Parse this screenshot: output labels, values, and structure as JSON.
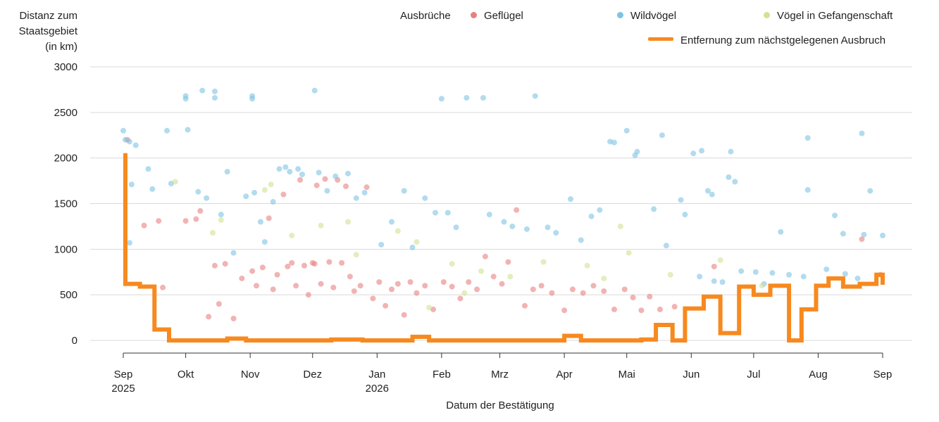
{
  "chart_data": {
    "type": "scatter",
    "ylabel_lines": [
      "Distanz zum",
      "Staatsgebiet",
      "(in km)"
    ],
    "xlabel": "Datum der Bestätigung",
    "ylim": [
      0,
      3000
    ],
    "yticks": [
      0,
      500,
      1000,
      1500,
      2000,
      2500,
      3000
    ],
    "xlim": [
      "2025-09-01",
      "2026-09-01"
    ],
    "xticks": [
      {
        "date": "2025-09-01",
        "label": "Sep",
        "sub": "2025"
      },
      {
        "date": "2025-10-01",
        "label": "Okt",
        "sub": ""
      },
      {
        "date": "2025-11-01",
        "label": "Nov",
        "sub": ""
      },
      {
        "date": "2025-12-01",
        "label": "Dez",
        "sub": ""
      },
      {
        "date": "2026-01-01",
        "label": "Jan",
        "sub": "2026"
      },
      {
        "date": "2026-02-01",
        "label": "Feb",
        "sub": ""
      },
      {
        "date": "2026-03-01",
        "label": "Mrz",
        "sub": ""
      },
      {
        "date": "2026-04-01",
        "label": "Apr",
        "sub": ""
      },
      {
        "date": "2026-05-01",
        "label": "Mai",
        "sub": ""
      },
      {
        "date": "2026-06-01",
        "label": "Jun",
        "sub": ""
      },
      {
        "date": "2026-07-01",
        "label": "Jul",
        "sub": ""
      },
      {
        "date": "2026-08-01",
        "label": "Aug",
        "sub": ""
      },
      {
        "date": "2026-09-01",
        "label": "Sep",
        "sub": ""
      }
    ],
    "grid": true,
    "legend": {
      "position": "top-right",
      "title": "Ausbrüche",
      "items": [
        "Geflügel",
        "Wildvögel",
        "Vögel in Gefangenschaft"
      ],
      "line_label": "Entfernung zum nächstgelegenen Ausbruch"
    },
    "series": [
      {
        "name": "Geflügel",
        "color": "#e88080",
        "points": [
          [
            "2025-09-03",
            2200
          ],
          [
            "2025-09-11",
            1260
          ],
          [
            "2025-09-18",
            1310
          ],
          [
            "2025-09-20",
            580
          ],
          [
            "2025-10-01",
            1310
          ],
          [
            "2025-10-06",
            1330
          ],
          [
            "2025-10-08",
            1420
          ],
          [
            "2025-10-12",
            260
          ],
          [
            "2025-10-15",
            820
          ],
          [
            "2025-10-17",
            400
          ],
          [
            "2025-10-20",
            840
          ],
          [
            "2025-10-24",
            240
          ],
          [
            "2025-10-28",
            680
          ],
          [
            "2025-11-02",
            760
          ],
          [
            "2025-11-04",
            600
          ],
          [
            "2025-11-07",
            800
          ],
          [
            "2025-11-10",
            1340
          ],
          [
            "2025-11-12",
            560
          ],
          [
            "2025-11-14",
            720
          ],
          [
            "2025-11-17",
            1600
          ],
          [
            "2025-11-19",
            810
          ],
          [
            "2025-11-21",
            850
          ],
          [
            "2025-11-23",
            600
          ],
          [
            "2025-11-25",
            1760
          ],
          [
            "2025-11-27",
            820
          ],
          [
            "2025-11-29",
            500
          ],
          [
            "2025-12-01",
            850
          ],
          [
            "2025-12-02",
            840
          ],
          [
            "2025-12-03",
            1700
          ],
          [
            "2025-12-05",
            620
          ],
          [
            "2025-12-07",
            1770
          ],
          [
            "2025-12-09",
            860
          ],
          [
            "2025-12-11",
            580
          ],
          [
            "2025-12-13",
            1760
          ],
          [
            "2025-12-15",
            850
          ],
          [
            "2025-12-17",
            1690
          ],
          [
            "2025-12-19",
            700
          ],
          [
            "2025-12-21",
            540
          ],
          [
            "2025-12-24",
            600
          ],
          [
            "2025-12-27",
            1680
          ],
          [
            "2025-12-30",
            460
          ],
          [
            "2026-01-02",
            640
          ],
          [
            "2026-01-05",
            380
          ],
          [
            "2026-01-08",
            560
          ],
          [
            "2026-01-11",
            620
          ],
          [
            "2026-01-14",
            280
          ],
          [
            "2026-01-17",
            640
          ],
          [
            "2026-01-20",
            520
          ],
          [
            "2026-01-24",
            600
          ],
          [
            "2026-01-28",
            340
          ],
          [
            "2026-02-02",
            640
          ],
          [
            "2026-02-06",
            590
          ],
          [
            "2026-02-10",
            460
          ],
          [
            "2026-02-14",
            640
          ],
          [
            "2026-02-18",
            560
          ],
          [
            "2026-02-22",
            920
          ],
          [
            "2026-02-26",
            700
          ],
          [
            "2026-03-02",
            620
          ],
          [
            "2026-03-05",
            860
          ],
          [
            "2026-03-09",
            1430
          ],
          [
            "2026-03-13",
            380
          ],
          [
            "2026-03-17",
            560
          ],
          [
            "2026-03-21",
            600
          ],
          [
            "2026-03-26",
            520
          ],
          [
            "2026-04-01",
            330
          ],
          [
            "2026-04-05",
            560
          ],
          [
            "2026-04-10",
            520
          ],
          [
            "2026-04-15",
            600
          ],
          [
            "2026-04-20",
            540
          ],
          [
            "2026-04-25",
            340
          ],
          [
            "2026-04-30",
            560
          ],
          [
            "2026-05-04",
            470
          ],
          [
            "2026-05-08",
            330
          ],
          [
            "2026-05-12",
            480
          ],
          [
            "2026-05-17",
            340
          ],
          [
            "2026-05-24",
            370
          ],
          [
            "2026-06-12",
            810
          ],
          [
            "2026-08-22",
            1110
          ],
          [
            "2026-08-31",
            720
          ]
        ]
      },
      {
        "name": "Wildvögel",
        "color": "#7ec3e3",
        "points": [
          [
            "2025-09-01",
            2300
          ],
          [
            "2025-09-02",
            2200
          ],
          [
            "2025-09-04",
            2180
          ],
          [
            "2025-09-07",
            2140
          ],
          [
            "2025-09-04",
            1070
          ],
          [
            "2025-09-05",
            1710
          ],
          [
            "2025-09-13",
            1880
          ],
          [
            "2025-09-15",
            1660
          ],
          [
            "2025-09-22",
            2300
          ],
          [
            "2025-09-24",
            1720
          ],
          [
            "2025-10-01",
            2680
          ],
          [
            "2025-10-01",
            2650
          ],
          [
            "2025-10-02",
            2310
          ],
          [
            "2025-10-09",
            2740
          ],
          [
            "2025-10-15",
            2730
          ],
          [
            "2025-10-15",
            2660
          ],
          [
            "2025-10-07",
            1630
          ],
          [
            "2025-10-11",
            1560
          ],
          [
            "2025-10-18",
            1380
          ],
          [
            "2025-10-21",
            1850
          ],
          [
            "2025-10-24",
            960
          ],
          [
            "2025-10-30",
            1580
          ],
          [
            "2025-11-02",
            2680
          ],
          [
            "2025-11-02",
            2650
          ],
          [
            "2025-11-03",
            1620
          ],
          [
            "2025-11-06",
            1300
          ],
          [
            "2025-11-08",
            1080
          ],
          [
            "2025-11-12",
            1520
          ],
          [
            "2025-11-15",
            1880
          ],
          [
            "2025-11-18",
            1900
          ],
          [
            "2025-11-20",
            1850
          ],
          [
            "2025-11-24",
            1880
          ],
          [
            "2025-11-26",
            1820
          ],
          [
            "2025-12-02",
            2740
          ],
          [
            "2025-12-04",
            1840
          ],
          [
            "2025-12-08",
            1640
          ],
          [
            "2025-12-12",
            1800
          ],
          [
            "2025-12-18",
            1830
          ],
          [
            "2025-12-22",
            1560
          ],
          [
            "2025-12-26",
            1620
          ],
          [
            "2026-01-03",
            1050
          ],
          [
            "2026-01-08",
            1300
          ],
          [
            "2026-01-14",
            1640
          ],
          [
            "2026-01-18",
            1020
          ],
          [
            "2026-01-24",
            1560
          ],
          [
            "2026-01-29",
            1400
          ],
          [
            "2026-02-01",
            2650
          ],
          [
            "2026-02-04",
            1400
          ],
          [
            "2026-02-08",
            1240
          ],
          [
            "2026-02-13",
            2660
          ],
          [
            "2026-02-21",
            2660
          ],
          [
            "2026-02-24",
            1380
          ],
          [
            "2026-03-03",
            1300
          ],
          [
            "2026-03-07",
            1250
          ],
          [
            "2026-03-14",
            1220
          ],
          [
            "2026-03-18",
            2680
          ],
          [
            "2026-03-24",
            1240
          ],
          [
            "2026-03-28",
            1180
          ],
          [
            "2026-04-04",
            1550
          ],
          [
            "2026-04-09",
            1100
          ],
          [
            "2026-04-14",
            1360
          ],
          [
            "2026-04-18",
            1430
          ],
          [
            "2026-04-23",
            2180
          ],
          [
            "2026-04-25",
            2170
          ],
          [
            "2026-05-01",
            2300
          ],
          [
            "2026-05-05",
            2030
          ],
          [
            "2026-05-06",
            2070
          ],
          [
            "2026-05-18",
            2250
          ],
          [
            "2026-05-14",
            1440
          ],
          [
            "2026-05-20",
            1040
          ],
          [
            "2026-05-27",
            1540
          ],
          [
            "2026-05-29",
            1380
          ],
          [
            "2026-06-02",
            2050
          ],
          [
            "2026-06-06",
            2080
          ],
          [
            "2026-06-09",
            1640
          ],
          [
            "2026-06-11",
            1600
          ],
          [
            "2026-06-19",
            1790
          ],
          [
            "2026-06-22",
            1740
          ],
          [
            "2026-06-20",
            2070
          ],
          [
            "2026-07-14",
            1190
          ],
          [
            "2026-07-27",
            2220
          ],
          [
            "2026-07-27",
            1650
          ],
          [
            "2026-08-09",
            1370
          ],
          [
            "2026-08-13",
            1170
          ],
          [
            "2026-08-22",
            2270
          ],
          [
            "2026-08-23",
            1160
          ],
          [
            "2026-08-26",
            1640
          ],
          [
            "2026-09-01",
            1150
          ],
          [
            "2026-06-05",
            700
          ],
          [
            "2026-06-12",
            650
          ],
          [
            "2026-06-25",
            760
          ],
          [
            "2026-07-02",
            750
          ],
          [
            "2026-07-10",
            740
          ],
          [
            "2026-07-18",
            720
          ],
          [
            "2026-07-25",
            700
          ],
          [
            "2026-08-05",
            780
          ],
          [
            "2026-08-14",
            730
          ],
          [
            "2026-08-20",
            680
          ],
          [
            "2026-06-16",
            640
          ],
          [
            "2026-07-06",
            620
          ]
        ]
      },
      {
        "name": "Vögel in Gefangenschaft",
        "color": "#cfe393",
        "points": [
          [
            "2025-09-26",
            1740
          ],
          [
            "2025-10-18",
            1320
          ],
          [
            "2025-11-08",
            1650
          ],
          [
            "2025-11-11",
            1710
          ],
          [
            "2025-10-14",
            1180
          ],
          [
            "2025-11-21",
            1150
          ],
          [
            "2025-12-05",
            1260
          ],
          [
            "2025-12-18",
            1300
          ],
          [
            "2026-01-11",
            1200
          ],
          [
            "2026-01-20",
            1080
          ],
          [
            "2026-02-06",
            840
          ],
          [
            "2026-02-20",
            760
          ],
          [
            "2026-03-06",
            700
          ],
          [
            "2026-03-22",
            860
          ],
          [
            "2026-04-12",
            820
          ],
          [
            "2026-04-28",
            1250
          ],
          [
            "2026-05-02",
            960
          ],
          [
            "2026-05-22",
            720
          ],
          [
            "2026-06-15",
            880
          ],
          [
            "2026-07-05",
            600
          ],
          [
            "2026-02-12",
            520
          ],
          [
            "2026-01-26",
            360
          ],
          [
            "2025-12-22",
            940
          ],
          [
            "2026-04-20",
            680
          ]
        ]
      }
    ],
    "step_line": {
      "name": "Entfernung zum nächstgelegenen Ausbruch",
      "color": "#f7891f",
      "points": [
        [
          "2025-09-01",
          2030
        ],
        [
          "2025-09-02",
          620
        ],
        [
          "2025-09-09",
          590
        ],
        [
          "2025-09-16",
          120
        ],
        [
          "2025-09-23",
          0
        ],
        [
          "2025-10-21",
          20
        ],
        [
          "2025-10-30",
          0
        ],
        [
          "2025-12-10",
          10
        ],
        [
          "2025-12-25",
          0
        ],
        [
          "2026-01-18",
          40
        ],
        [
          "2026-01-26",
          0
        ],
        [
          "2026-04-01",
          50
        ],
        [
          "2026-04-09",
          0
        ],
        [
          "2026-05-08",
          10
        ],
        [
          "2026-05-15",
          170
        ],
        [
          "2026-05-23",
          0
        ],
        [
          "2026-05-29",
          350
        ],
        [
          "2026-06-07",
          480
        ],
        [
          "2026-06-15",
          80
        ],
        [
          "2026-06-24",
          590
        ],
        [
          "2026-07-01",
          500
        ],
        [
          "2026-07-09",
          600
        ],
        [
          "2026-07-18",
          0
        ],
        [
          "2026-07-24",
          340
        ],
        [
          "2026-07-31",
          600
        ],
        [
          "2026-08-06",
          680
        ],
        [
          "2026-08-13",
          590
        ],
        [
          "2026-08-21",
          620
        ],
        [
          "2026-08-29",
          720
        ],
        [
          "2026-09-06",
          610
        ],
        [
          "2026-09-12",
          610
        ]
      ]
    }
  }
}
